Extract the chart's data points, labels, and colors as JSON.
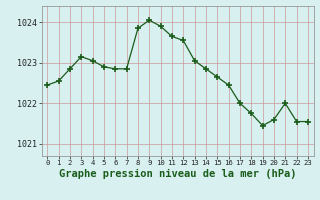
{
  "x": [
    0,
    1,
    2,
    3,
    4,
    5,
    6,
    7,
    8,
    9,
    10,
    11,
    12,
    13,
    14,
    15,
    16,
    17,
    18,
    19,
    20,
    21,
    22,
    23
  ],
  "y": [
    1022.45,
    1022.55,
    1022.85,
    1023.15,
    1023.05,
    1022.9,
    1022.85,
    1022.85,
    1023.85,
    1024.05,
    1023.9,
    1023.65,
    1023.55,
    1023.05,
    1022.85,
    1022.65,
    1022.45,
    1022.0,
    1021.75,
    1021.45,
    1021.6,
    1022.0,
    1021.55,
    1021.55
  ],
  "line_color": "#1a5c1a",
  "marker_color": "#1a5c1a",
  "bg_color": "#d8f0f0",
  "grid_color": "#cc9999",
  "xlabel": "Graphe pression niveau de la mer (hPa)",
  "xlabel_fontsize": 7.5,
  "ylabel_ticks": [
    1021,
    1022,
    1023,
    1024
  ],
  "xlim": [
    -0.5,
    23.5
  ],
  "ylim": [
    1020.7,
    1024.4
  ],
  "xlabel_color": "#1a5c1a"
}
